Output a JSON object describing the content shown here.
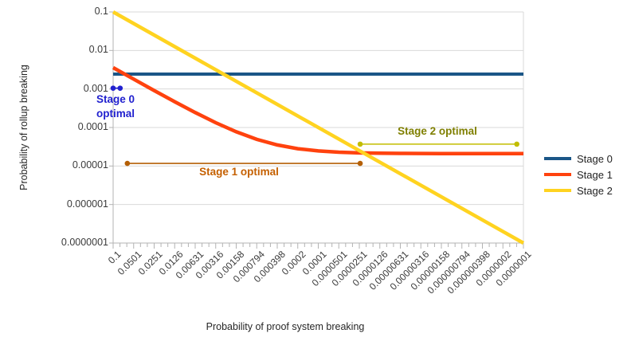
{
  "chart_data": {
    "type": "line",
    "xlabel": "Probability of proof system breaking",
    "ylabel": "Probability of rollup breaking",
    "x_scale": "log",
    "y_scale": "log",
    "xlim": [
      0.1,
      1e-07
    ],
    "ylim": [
      0.1,
      1e-07
    ],
    "grid": "horizontal-only",
    "legend_position": "right",
    "axis_color": "#b3b3b3",
    "grid_color": "#d9d9d9",
    "x_tick_labels": [
      "0.1",
      "0.0501",
      "0.0251",
      "0.0126",
      "0.00631",
      "0.00316",
      "0.00158",
      "0.000794",
      "0.000398",
      "0.0002",
      "0.0001",
      "0.0000501",
      "0.0000251",
      "0.0000126",
      "0.00000631",
      "0.00000316",
      "0.00000158",
      "0.000000794",
      "0.000000398",
      "0.0000002",
      "0.0000001"
    ],
    "y_tick_labels": [
      "0.1",
      "0.01",
      "0.001",
      "0.0001",
      "0.00001",
      "0.000001",
      "0.0000001"
    ],
    "series": [
      {
        "name": "Stage 0",
        "color": "#1b5687",
        "points": [
          [
            0.1,
            0.00243
          ],
          [
            1e-07,
            0.00243
          ]
        ]
      },
      {
        "name": "Stage 1",
        "color": "#ff420e",
        "points": [
          [
            0.1,
            0.003571
          ],
          [
            0.0501,
            0.0018
          ],
          [
            0.0251,
            0.000912
          ],
          [
            0.0126,
            0.000468
          ],
          [
            0.00631,
            0.000245
          ],
          [
            0.00316,
            0.0001332
          ],
          [
            0.00158,
            7.72e-05
          ],
          [
            0.000794,
            4.92e-05
          ],
          [
            0.000398,
            3.52e-05
          ],
          [
            0.0002,
            2.81e-05
          ],
          [
            0.0001,
            2.46e-05
          ],
          [
            5.01e-05,
            2.28e-05
          ],
          [
            2.51e-05,
            2.19e-05
          ],
          [
            1.26e-05,
            2.145e-05
          ],
          [
            6.31e-06,
            2.122e-05
          ],
          [
            3.16e-06,
            2.111e-05
          ],
          [
            1.58e-06,
            2.106e-05
          ],
          [
            7.94e-07,
            2.103e-05
          ],
          [
            3.98e-07,
            2.101e-05
          ],
          [
            2e-07,
            2.101e-05
          ],
          [
            1e-07,
            2.1e-05
          ]
        ]
      },
      {
        "name": "Stage 2",
        "color": "#ffd320",
        "points": [
          [
            0.1,
            0.1
          ],
          [
            1e-07,
            1e-07
          ]
        ]
      }
    ],
    "annotations": [
      {
        "id": "stage0-optimal",
        "label_line1": "Stage 0",
        "label_line2": "optimal",
        "color": "#2121cf",
        "text_color": "#2121cf",
        "y": 0.00105,
        "x1": 0.1,
        "x2": 0.079
      },
      {
        "id": "stage1-optimal",
        "label": "Stage 1 optimal",
        "color": "#b45f06",
        "text_color": "#c56000",
        "y": 1.17e-05,
        "x1": 0.062,
        "x2": 2.44e-05
      },
      {
        "id": "stage2-optimal",
        "label": "Stage 2 optimal",
        "color": "#c2bd00",
        "text_color": "#7f7f00",
        "y": 3.7e-05,
        "x1": 2.44e-05,
        "x2": 1.25e-07
      }
    ]
  }
}
